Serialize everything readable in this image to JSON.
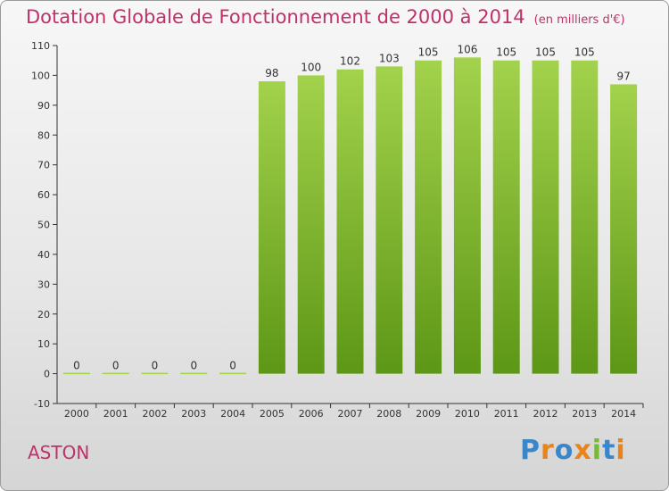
{
  "header": {
    "title": "Dotation Globale de Fonctionnement de 2000 à 2014",
    "unit": "(en milliers d'€)"
  },
  "commune": "ASTON",
  "logo": {
    "text": "Proxiti",
    "letters": [
      "P",
      "r",
      "o",
      "x",
      "i",
      "t",
      "i"
    ],
    "colors": [
      "#3b86c8",
      "#e8841a",
      "#3b86c8",
      "#e8841a",
      "#7ab83a",
      "#3b86c8",
      "#e8841a"
    ]
  },
  "colors": {
    "title": "#c0306a",
    "bar_top": "#a3d24c",
    "bar_bottom": "#5d9716",
    "axis": "#333333"
  },
  "chart_data": {
    "type": "bar",
    "title": "Dotation Globale de Fonctionnement de 2000 à 2014",
    "subtitle": "(en milliers d'€)",
    "xlabel": "",
    "ylabel": "",
    "categories": [
      "2000",
      "2001",
      "2002",
      "2003",
      "2004",
      "2005",
      "2006",
      "2007",
      "2008",
      "2009",
      "2010",
      "2011",
      "2012",
      "2013",
      "2014"
    ],
    "values": [
      0,
      0,
      0,
      0,
      0,
      98,
      100,
      102,
      103,
      105,
      106,
      105,
      105,
      105,
      97
    ],
    "data_labels": [
      "0",
      "0",
      "0",
      "0",
      "0",
      "98",
      "100",
      "102",
      "103",
      "105",
      "106",
      "105",
      "105",
      "105",
      "97"
    ],
    "ylim": [
      -10,
      110
    ],
    "yticks": [
      -10,
      0,
      10,
      20,
      30,
      40,
      50,
      60,
      70,
      80,
      90,
      100,
      110
    ],
    "ytick_labels": [
      "-10",
      "0",
      "10",
      "20",
      "30",
      "40",
      "50",
      "60",
      "70",
      "80",
      "90",
      "100",
      "110"
    ],
    "grid": false,
    "legend": "none"
  }
}
